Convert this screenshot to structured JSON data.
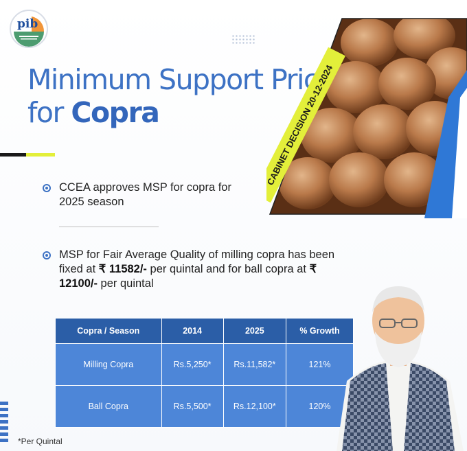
{
  "logo": {
    "text": "pib"
  },
  "title": {
    "line1": "Minimum Support Price",
    "line2_prefix": "for",
    "line2_bold": "Copra"
  },
  "banner": {
    "text": "CABINET DECISION 20-12-2024"
  },
  "bullets": [
    {
      "text": "CCEA approves MSP for copra for 2025 season"
    },
    {
      "part1": "MSP for Fair Average Quality of milling copra has been fixed at ",
      "bold1": "₹ 11582/-",
      "part2": " per quintal and for ball copra at ",
      "bold2": "₹ 12100/-",
      "part3": " per quintal"
    }
  ],
  "table": {
    "headers": [
      "Copra / Season",
      "2014",
      "2025",
      "% Growth"
    ],
    "rows": [
      [
        "Milling Copra",
        "Rs.5,250*",
        "Rs.11,582*",
        "121%"
      ],
      [
        "Ball Copra",
        "Rs.5,500*",
        "Rs.12,100*",
        "120%"
      ]
    ]
  },
  "footnote": "*Per Quintal",
  "colors": {
    "primary_blue": "#3d72c4",
    "table_header": "#2b5ea7",
    "table_cell": "#4d86d8",
    "banner_yellow": "#e3ef3a"
  },
  "icons": [
    "pib-logo",
    "bullet-icon"
  ]
}
